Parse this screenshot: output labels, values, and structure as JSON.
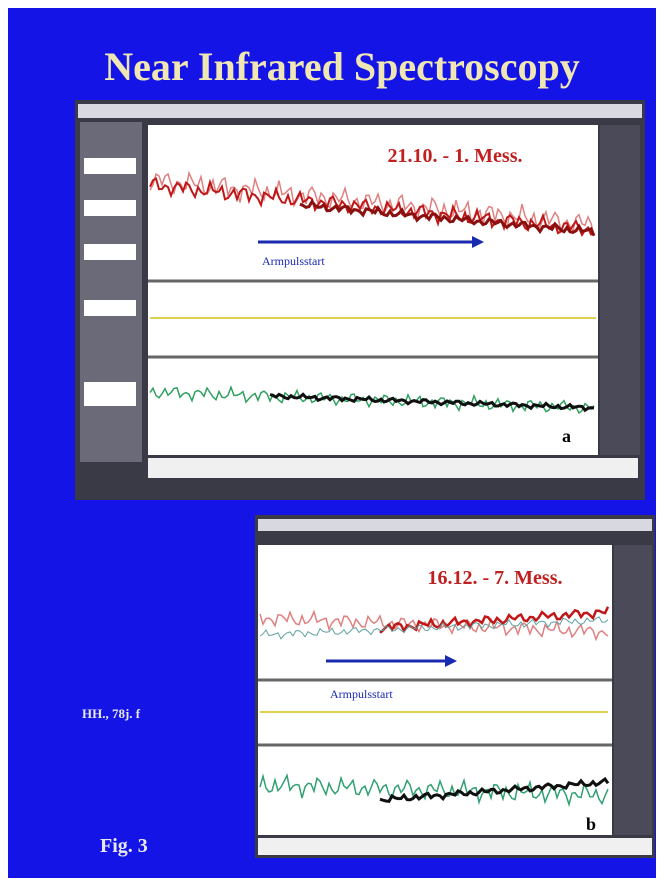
{
  "title": "Near Infrared Spectroscopy",
  "panels": [
    {
      "heading": "21.10. - 1. Mess.",
      "arrow_label": "Armpulsstart",
      "letter": "a"
    },
    {
      "heading": "16.12. - 7. Mess.",
      "arrow_label": "Armpulsstart",
      "letter": "b"
    }
  ],
  "subject": "HH., 78j. f",
  "figure": "Fig. 3"
}
